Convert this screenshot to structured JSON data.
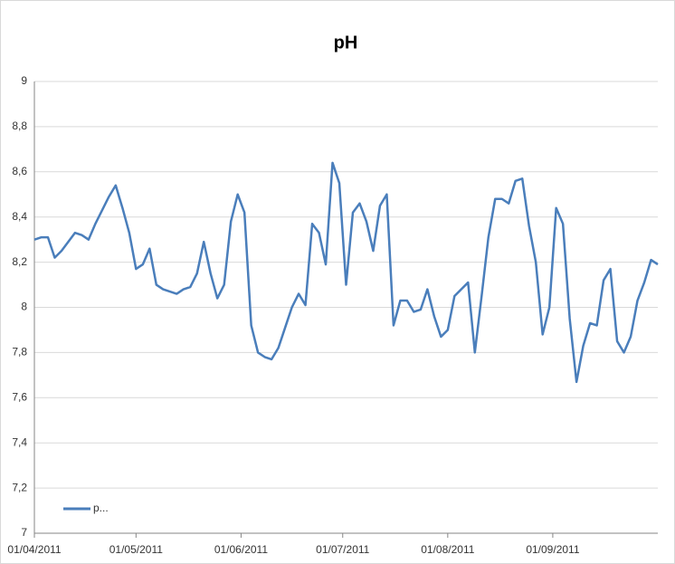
{
  "chart_data": {
    "type": "line",
    "title": "pH",
    "x": [
      "2011-04-01",
      "2011-04-03",
      "2011-04-05",
      "2011-04-07",
      "2011-04-09",
      "2011-04-11",
      "2011-04-13",
      "2011-04-15",
      "2011-04-17",
      "2011-04-19",
      "2011-04-21",
      "2011-04-23",
      "2011-04-25",
      "2011-04-27",
      "2011-04-29",
      "2011-05-01",
      "2011-05-03",
      "2011-05-05",
      "2011-05-07",
      "2011-05-09",
      "2011-05-11",
      "2011-05-13",
      "2011-05-15",
      "2011-05-17",
      "2011-05-19",
      "2011-05-21",
      "2011-05-23",
      "2011-05-25",
      "2011-05-27",
      "2011-05-29",
      "2011-05-31",
      "2011-06-02",
      "2011-06-04",
      "2011-06-06",
      "2011-06-08",
      "2011-06-10",
      "2011-06-12",
      "2011-06-14",
      "2011-06-16",
      "2011-06-18",
      "2011-06-20",
      "2011-06-22",
      "2011-06-24",
      "2011-06-26",
      "2011-06-28",
      "2011-06-30",
      "2011-07-02",
      "2011-07-04",
      "2011-07-06",
      "2011-07-08",
      "2011-07-10",
      "2011-07-12",
      "2011-07-14",
      "2011-07-16",
      "2011-07-18",
      "2011-07-20",
      "2011-07-22",
      "2011-07-24",
      "2011-07-26",
      "2011-07-28",
      "2011-07-30",
      "2011-08-01",
      "2011-08-03",
      "2011-08-05",
      "2011-08-07",
      "2011-08-09",
      "2011-08-11",
      "2011-08-13",
      "2011-08-15",
      "2011-08-17",
      "2011-08-19",
      "2011-08-21",
      "2011-08-23",
      "2011-08-25",
      "2011-08-27",
      "2011-08-29",
      "2011-08-31",
      "2011-09-02",
      "2011-09-04",
      "2011-09-06",
      "2011-09-08",
      "2011-09-10",
      "2011-09-12",
      "2011-09-14",
      "2011-09-16",
      "2011-09-18",
      "2011-09-20",
      "2011-09-22",
      "2011-09-24",
      "2011-09-26",
      "2011-09-28",
      "2011-09-30",
      "2011-10-02"
    ],
    "series": [
      {
        "name": "p...",
        "color": "#4a7ebb",
        "values": [
          8.3,
          8.31,
          8.31,
          8.22,
          8.25,
          8.29,
          8.33,
          8.32,
          8.3,
          8.37,
          8.43,
          8.49,
          8.54,
          8.44,
          8.33,
          8.17,
          8.19,
          8.26,
          8.1,
          8.08,
          8.07,
          8.06,
          8.08,
          8.09,
          8.15,
          8.29,
          8.15,
          8.04,
          8.1,
          8.38,
          8.5,
          8.42,
          7.92,
          7.8,
          7.78,
          7.77,
          7.82,
          7.91,
          8.0,
          8.06,
          8.01,
          8.37,
          8.33,
          8.19,
          8.64,
          8.55,
          8.1,
          8.42,
          8.46,
          8.38,
          8.25,
          8.45,
          8.5,
          7.92,
          8.03,
          8.03,
          7.98,
          7.99,
          8.08,
          7.96,
          7.87,
          7.9,
          8.05,
          8.08,
          8.11,
          7.8,
          8.05,
          8.31,
          8.48,
          8.48,
          8.46,
          8.56,
          8.57,
          8.36,
          8.2,
          7.88,
          8.0,
          8.44,
          8.37,
          7.95,
          7.67,
          7.83,
          7.93,
          7.92,
          8.12,
          8.17,
          7.85,
          7.8,
          7.87,
          8.03,
          8.11,
          8.21,
          8.19
        ]
      }
    ],
    "xlim": [
      "2011-04-01",
      "2011-10-02"
    ],
    "xticks": [
      {
        "value": "2011-04-01",
        "label": "01/04/2011"
      },
      {
        "value": "2011-05-01",
        "label": "01/05/2011"
      },
      {
        "value": "2011-06-01",
        "label": "01/06/2011"
      },
      {
        "value": "2011-07-01",
        "label": "01/07/2011"
      },
      {
        "value": "2011-08-01",
        "label": "01/08/2011"
      },
      {
        "value": "2011-09-01",
        "label": "01/09/2011"
      }
    ],
    "ylim": [
      7,
      9
    ],
    "yticks": [
      7,
      {
        "value": 7.2,
        "label": "7,2"
      },
      {
        "value": 7.4,
        "label": "7,4"
      },
      {
        "value": 7.6,
        "label": "7,6"
      },
      {
        "value": 7.8,
        "label": "7,8"
      },
      8,
      {
        "value": 8.2,
        "label": "8,2"
      },
      {
        "value": 8.4,
        "label": "8,4"
      },
      {
        "value": 8.6,
        "label": "8,6"
      },
      {
        "value": 8.8,
        "label": "8,8"
      },
      9
    ],
    "grid": true,
    "legend": "lower-left"
  }
}
